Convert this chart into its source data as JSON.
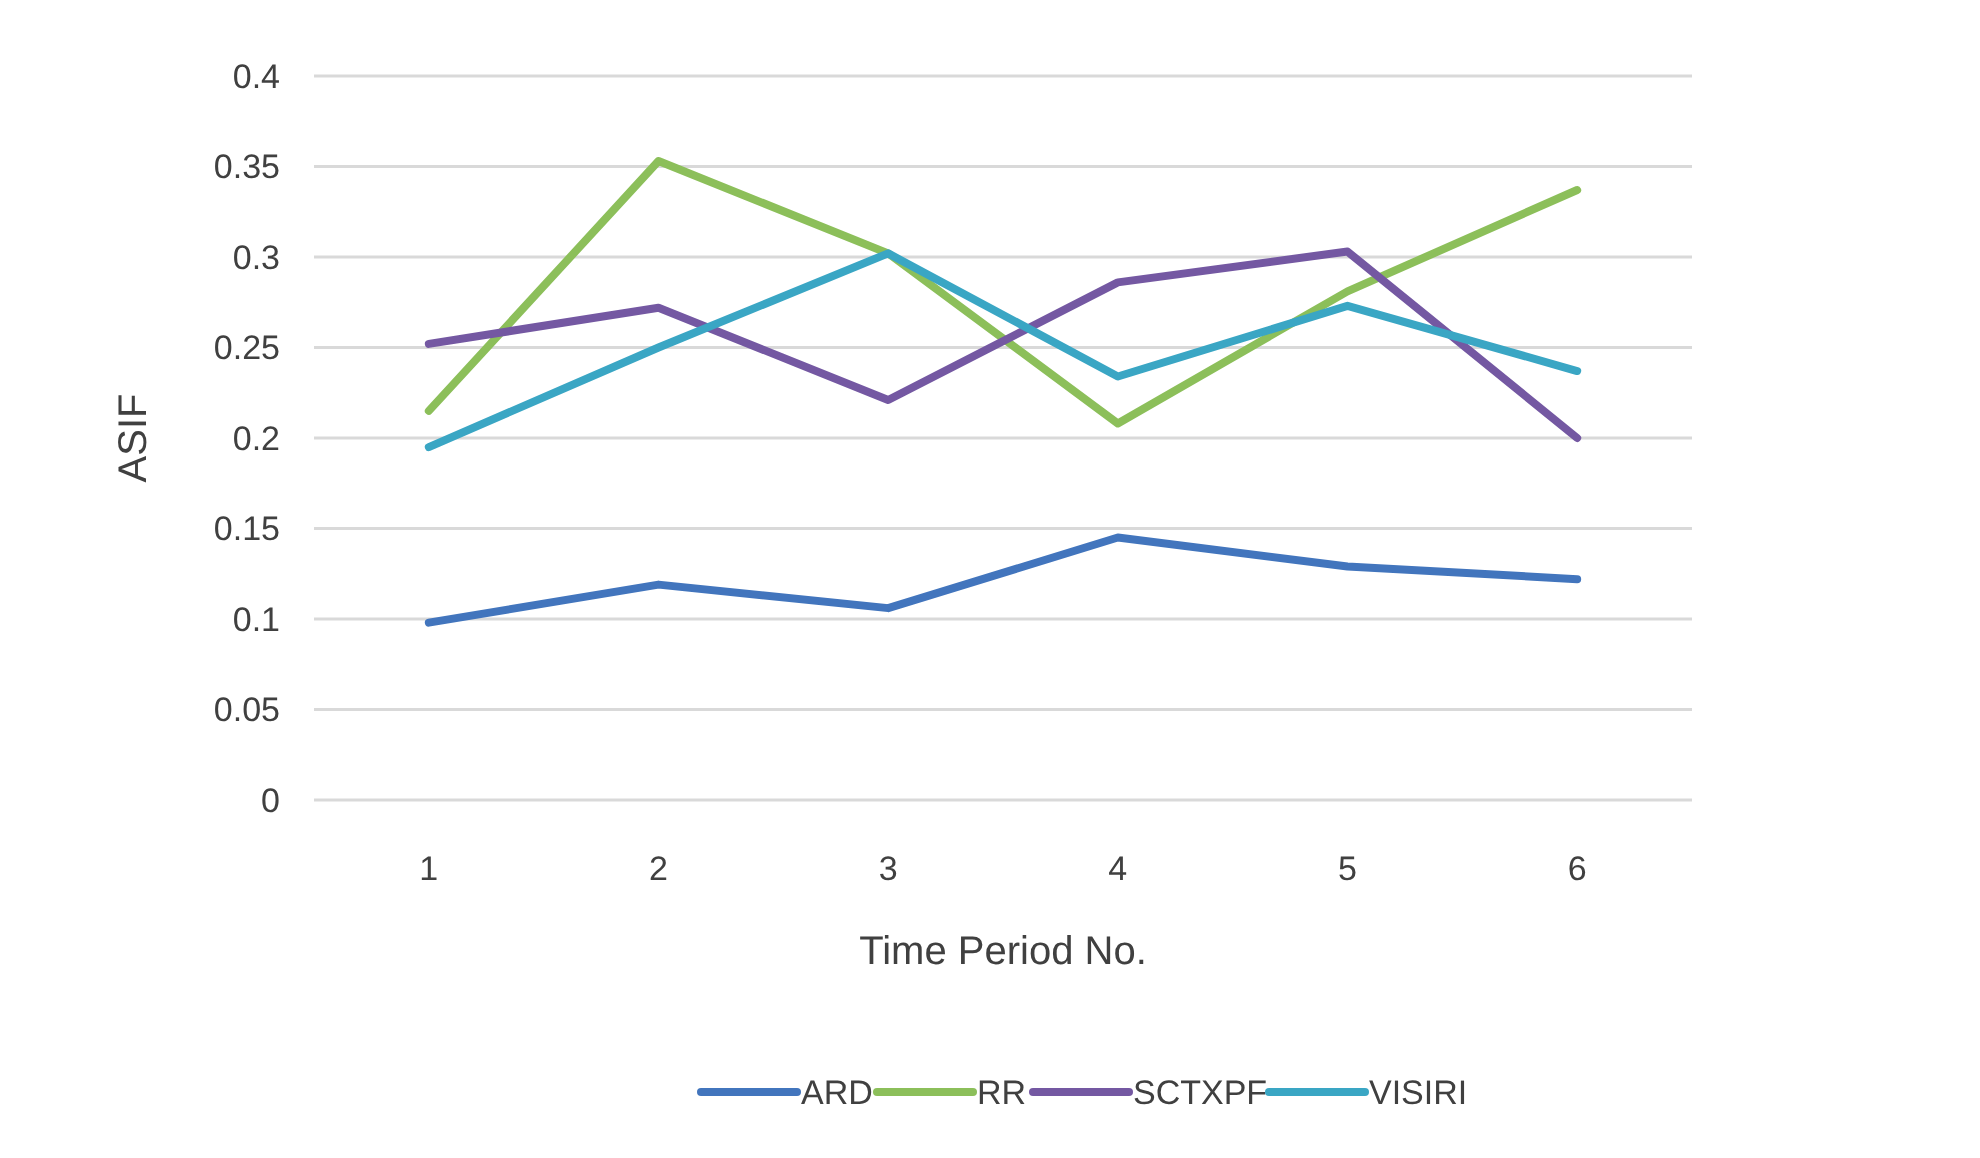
{
  "chart_data": {
    "type": "line",
    "xlabel": "Time Period No.",
    "ylabel": "ASIF",
    "categories": [
      "1",
      "2",
      "3",
      "4",
      "5",
      "6"
    ],
    "ylim": [
      0,
      0.4
    ],
    "yticks": [
      0,
      0.05,
      0.1,
      0.15,
      0.2,
      0.25,
      0.3,
      0.35,
      0.4
    ],
    "grid": "y",
    "legend": "bottom",
    "marker": "none",
    "line_style": "solid",
    "series": [
      {
        "name": "ARD",
        "color": "#4275bd",
        "values": [
          0.098,
          0.119,
          0.106,
          0.145,
          0.129,
          0.122
        ]
      },
      {
        "name": "RR",
        "color": "#8cbf5a",
        "values": [
          0.215,
          0.353,
          0.302,
          0.208,
          0.281,
          0.337
        ]
      },
      {
        "name": "SCTXPF",
        "color": "#7458a2",
        "values": [
          0.252,
          0.272,
          0.221,
          0.286,
          0.303,
          0.2
        ]
      },
      {
        "name": "VISIRI",
        "color": "#3aa6c4",
        "values": [
          0.195,
          0.25,
          0.302,
          0.234,
          0.273,
          0.237
        ]
      }
    ]
  }
}
